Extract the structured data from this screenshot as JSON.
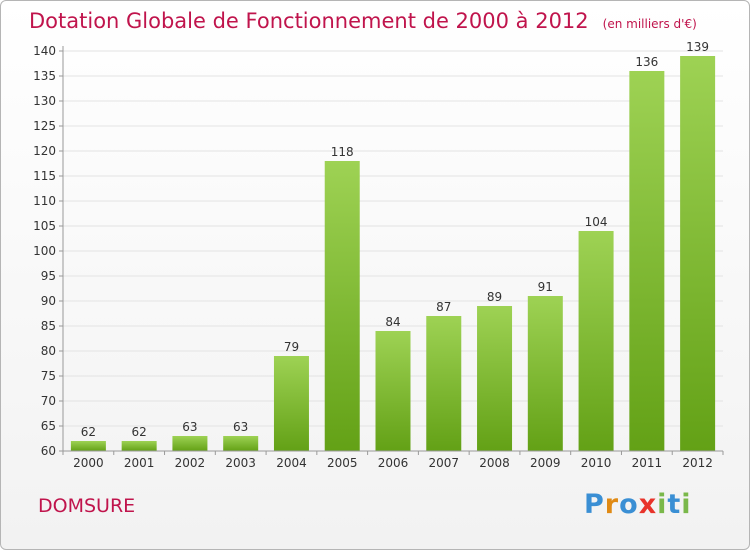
{
  "title": "Dotation Globale de Fonctionnement de 2000 à 2012",
  "unit_note": "(en milliers d'€)",
  "commune": "DOMSURE",
  "logo": {
    "letters": [
      "P",
      "r",
      "o",
      "x",
      "i",
      "t",
      "i"
    ],
    "colors": [
      "#3a8fd4",
      "#e08a14",
      "#3a8fd4",
      "#e8332a",
      "#7ab84a",
      "#3a8fd4",
      "#7ab84a"
    ]
  },
  "chart_data": {
    "type": "bar",
    "categories": [
      "2000",
      "2001",
      "2002",
      "2003",
      "2004",
      "2005",
      "2006",
      "2007",
      "2008",
      "2009",
      "2010",
      "2011",
      "2012"
    ],
    "values": [
      62,
      62,
      63,
      63,
      79,
      118,
      84,
      87,
      89,
      91,
      104,
      136,
      139
    ],
    "data_labels": [
      "62",
      "62",
      "63",
      "63",
      "79",
      "118",
      "84",
      "87",
      "89",
      "91",
      "104",
      "136",
      "139"
    ],
    "yticks": [
      60,
      65,
      70,
      75,
      80,
      85,
      90,
      95,
      100,
      105,
      110,
      115,
      120,
      125,
      130,
      135,
      140
    ],
    "ylim": [
      60,
      140
    ],
    "grid": true,
    "bar_color_top": "#9ed254",
    "bar_color_bottom": "#63a116"
  }
}
